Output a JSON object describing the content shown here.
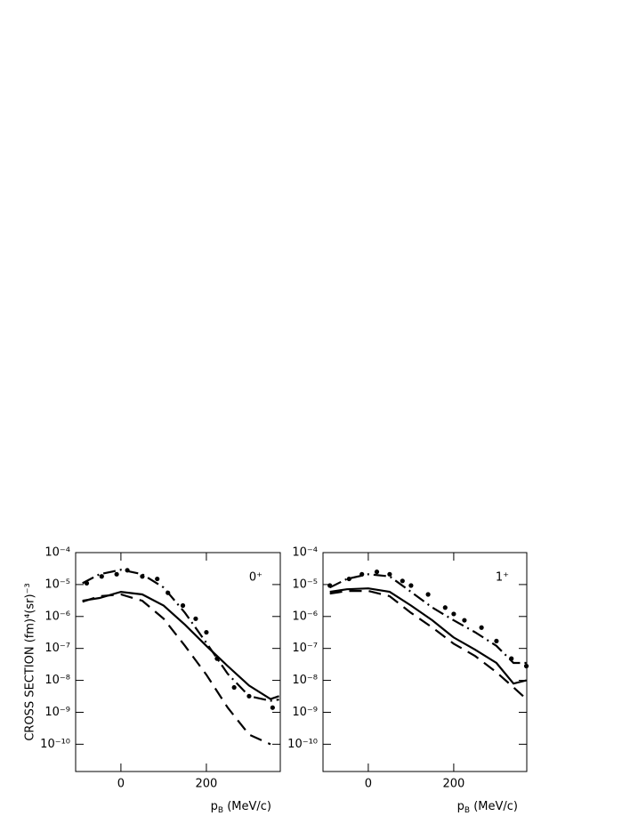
{
  "chart_data": [
    {
      "type": "line",
      "ylabel": "CROSS SECTION (fm)⁴(sr)⁻³",
      "xlabel": "pB (MeV/c)",
      "annotation": "0⁺",
      "log_y": true,
      "xlim": [
        -106,
        373
      ],
      "xticks": [
        0,
        200
      ],
      "ylim": [
        1.4e-11,
        0.0001
      ],
      "yticks": [
        {
          "value": 1e-10,
          "label": "10⁻¹⁰"
        },
        {
          "value": 1e-09,
          "label": "10⁻⁹"
        },
        {
          "value": 1e-08,
          "label": "10⁻⁸"
        },
        {
          "value": 1e-07,
          "label": "10⁻⁷"
        },
        {
          "value": 1e-06,
          "label": "10⁻⁶"
        },
        {
          "value": 1e-05,
          "label": "10⁻⁵"
        },
        {
          "value": 0.0001,
          "label": "10⁻⁴"
        }
      ],
      "x": [
        -90,
        -50,
        0,
        50,
        100,
        150,
        200,
        250,
        300,
        350,
        370
      ],
      "series": [
        {
          "color": "#000000",
          "style": "solid",
          "values": [
            3.1e-06,
            3.8e-06,
            5.9e-06,
            4.9e-06,
            2.2e-06,
            5.5e-07,
            1.2e-07,
            2.8e-08,
            6.9e-09,
            2.6e-09,
            3.2e-09
          ]
        },
        {
          "color": "#000000",
          "style": "dashed",
          "values": [
            2.9e-06,
            4.3e-06,
            4.9e-06,
            3.1e-06,
            8.5e-07,
            1.2e-07,
            1.5e-08,
            1.4e-09,
            2e-10,
            1e-10,
            null
          ]
        },
        {
          "color": "#000000",
          "style": "dashdot",
          "values": [
            1.1e-05,
            2.1e-05,
            2.9e-05,
            2.1e-05,
            8.1e-06,
            1.3e-06,
            1.5e-07,
            1.6e-08,
            3.2e-09,
            2.3e-09,
            2.5e-09
          ]
        },
        {
          "color": "#000000",
          "style": "dots",
          "x": [
            -80,
            -45,
            -10,
            15,
            50,
            85,
            110,
            145,
            175,
            200,
            225,
            265,
            300,
            355
          ],
          "values": [
            1.1e-05,
            1.8e-05,
            2.1e-05,
            2.8e-05,
            1.8e-05,
            1.5e-05,
            5.5e-06,
            2.2e-06,
            8.5e-07,
            3.2e-07,
            4.8e-08,
            6e-09,
            3.2e-09,
            1.4e-09
          ]
        }
      ]
    },
    {
      "type": "line",
      "xlabel": "pB (MeV/c)",
      "annotation": "1⁺",
      "log_y": true,
      "xlim": [
        -106,
        371
      ],
      "xticks": [
        0,
        200
      ],
      "ylim": [
        1.4e-11,
        0.0001
      ],
      "yticks": [
        {
          "value": 1e-10,
          "label": "10⁻¹⁰"
        },
        {
          "value": 1e-09,
          "label": "10⁻⁹"
        },
        {
          "value": 1e-08,
          "label": "10⁻⁸"
        },
        {
          "value": 1e-07,
          "label": "10⁻⁷"
        },
        {
          "value": 1e-06,
          "label": "10⁻⁶"
        },
        {
          "value": 1e-05,
          "label": "10⁻⁵"
        },
        {
          "value": 0.0001,
          "label": "10⁻⁴"
        }
      ],
      "x": [
        -90,
        -50,
        0,
        50,
        100,
        150,
        200,
        250,
        300,
        340,
        370
      ],
      "series": [
        {
          "color": "#000000",
          "style": "solid",
          "values": [
            5.9e-06,
            7.1e-06,
            7.6e-06,
            5.9e-06,
            2.2e-06,
            7.6e-07,
            2.2e-07,
            9.1e-08,
            3.5e-08,
            7.9e-09,
            1e-08
          ]
        },
        {
          "color": "#000000",
          "style": "dashed",
          "values": [
            5.2e-06,
            6.3e-06,
            6.3e-06,
            4.3e-06,
            1.3e-06,
            4.5e-07,
            1.4e-07,
            5.8e-08,
            1.8e-08,
            6e-09,
            2.6e-09
          ]
        },
        {
          "color": "#000000",
          "style": "dashdot",
          "values": [
            8.1e-06,
            1.5e-05,
            2.1e-05,
            1.8e-05,
            5.9e-06,
            1.9e-06,
            7.6e-07,
            3.2e-07,
            1.2e-07,
            3.5e-08,
            3.5e-08
          ]
        },
        {
          "color": "#000000",
          "style": "dots",
          "x": [
            -90,
            -45,
            -15,
            20,
            50,
            80,
            100,
            140,
            180,
            200,
            225,
            265,
            300,
            335,
            370
          ],
          "values": [
            9.3e-06,
            1.5e-05,
            2.1e-05,
            2.5e-05,
            2.1e-05,
            1.3e-05,
            9.3e-06,
            4.9e-06,
            1.9e-06,
            1.2e-06,
            7.6e-07,
            4.5e-07,
            1.7e-07,
            4.8e-08,
            2.8e-08
          ]
        }
      ]
    }
  ]
}
